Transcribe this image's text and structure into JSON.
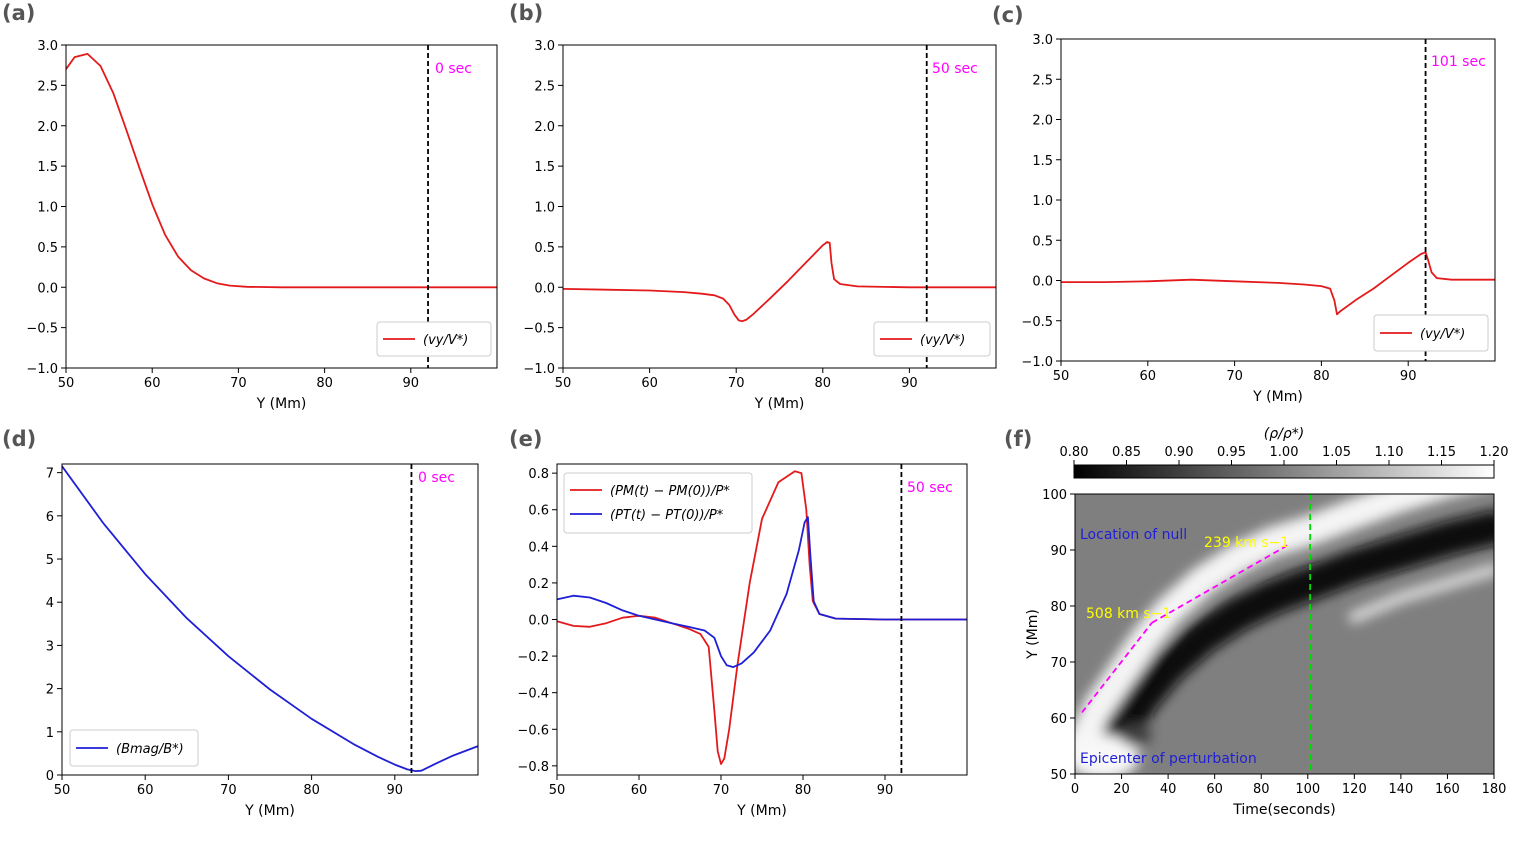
{
  "chart_data": [
    {
      "id": "a",
      "type": "line",
      "panel_label": "(a)",
      "xlabel": "Y (Mm)",
      "ylabel": "",
      "xlim": [
        50,
        100
      ],
      "ylim": [
        -1.0,
        3.0
      ],
      "xticks": [
        50,
        60,
        70,
        80,
        90
      ],
      "xtick_labels": [
        "50",
        "60",
        "70",
        "80",
        "90"
      ],
      "yticks": [
        -1.0,
        -0.5,
        0.0,
        0.5,
        1.0,
        1.5,
        2.0,
        2.5,
        3.0
      ],
      "ytick_labels": [
        "−1.0",
        "−0.5",
        "0.0",
        "0.5",
        "1.0",
        "1.5",
        "2.0",
        "2.5",
        "3.0"
      ],
      "vline": {
        "x": 92,
        "color": "#000000",
        "style": "dashed"
      },
      "annotation": {
        "text": "0 sec",
        "color": "#ff00ff"
      },
      "legend": {
        "placement": "lower right",
        "entries": [
          {
            "label": "(vy/V*)",
            "color": "#e31a1c"
          }
        ]
      },
      "series": [
        {
          "name": "(vy/V*)",
          "color": "#e31a1c",
          "x": [
            50,
            51,
            52.5,
            54,
            55.5,
            57,
            58.5,
            60,
            61.5,
            63,
            64.5,
            66,
            67.5,
            69,
            71,
            75,
            80,
            90,
            100
          ],
          "y": [
            2.7,
            2.85,
            2.89,
            2.74,
            2.4,
            1.95,
            1.48,
            1.03,
            0.65,
            0.38,
            0.21,
            0.11,
            0.05,
            0.02,
            0.005,
            0.0,
            0.0,
            0.0,
            0.0
          ]
        }
      ]
    },
    {
      "id": "b",
      "type": "line",
      "panel_label": "(b)",
      "xlabel": "Y (Mm)",
      "ylabel": "",
      "xlim": [
        50,
        100
      ],
      "ylim": [
        -1.0,
        3.0
      ],
      "xticks": [
        50,
        60,
        70,
        80,
        90
      ],
      "xtick_labels": [
        "50",
        "60",
        "70",
        "80",
        "90"
      ],
      "yticks": [
        -1.0,
        -0.5,
        0.0,
        0.5,
        1.0,
        1.5,
        2.0,
        2.5,
        3.0
      ],
      "ytick_labels": [
        "−1.0",
        "−0.5",
        "0.0",
        "0.5",
        "1.0",
        "1.5",
        "2.0",
        "2.5",
        "3.0"
      ],
      "vline": {
        "x": 92,
        "color": "#000000",
        "style": "dashed"
      },
      "annotation": {
        "text": "50 sec",
        "color": "#ff00ff"
      },
      "legend": {
        "placement": "lower right",
        "entries": [
          {
            "label": "(vy/V*)",
            "color": "#e31a1c"
          }
        ]
      },
      "series": [
        {
          "name": "(vy/V*)",
          "color": "#e31a1c",
          "x": [
            50,
            55,
            60,
            64,
            66,
            67.5,
            68.5,
            69.2,
            69.8,
            70.3,
            70.7,
            71.2,
            72,
            74,
            76,
            78,
            80,
            80.5,
            80.8,
            81.0,
            81.3,
            82,
            84,
            90,
            100
          ],
          "y": [
            -0.02,
            -0.03,
            -0.04,
            -0.06,
            -0.08,
            -0.1,
            -0.14,
            -0.22,
            -0.34,
            -0.41,
            -0.42,
            -0.4,
            -0.33,
            -0.13,
            0.08,
            0.3,
            0.52,
            0.56,
            0.55,
            0.3,
            0.1,
            0.04,
            0.01,
            0.0,
            0.0
          ]
        }
      ]
    },
    {
      "id": "c",
      "type": "line",
      "panel_label": "(c)",
      "xlabel": "Y (Mm)",
      "ylabel": "",
      "xlim": [
        50,
        100
      ],
      "ylim": [
        -1.0,
        3.0
      ],
      "xticks": [
        50,
        60,
        70,
        80,
        90
      ],
      "xtick_labels": [
        "50",
        "60",
        "70",
        "80",
        "90"
      ],
      "yticks": [
        -1.0,
        -0.5,
        0.0,
        0.5,
        1.0,
        1.5,
        2.0,
        2.5,
        3.0
      ],
      "ytick_labels": [
        "−1.0",
        "−0.5",
        "0.0",
        "0.5",
        "1.0",
        "1.5",
        "2.0",
        "2.5",
        "3.0"
      ],
      "vline": {
        "x": 92,
        "color": "#000000",
        "style": "dashed"
      },
      "annotation": {
        "text": "101 sec",
        "color": "#ff00ff"
      },
      "legend": {
        "placement": "lower right",
        "entries": [
          {
            "label": "(vy/V*)",
            "color": "#e31a1c"
          }
        ]
      },
      "series": [
        {
          "name": "(vy/V*)",
          "color": "#e31a1c",
          "x": [
            50,
            55,
            60,
            65,
            70,
            75,
            78,
            80,
            81,
            81.5,
            81.8,
            82.2,
            84,
            86,
            88,
            90,
            91.5,
            92,
            92.3,
            92.7,
            93.3,
            95,
            100
          ],
          "y": [
            -0.02,
            -0.02,
            -0.01,
            0.01,
            -0.01,
            -0.03,
            -0.05,
            -0.07,
            -0.1,
            -0.25,
            -0.42,
            -0.38,
            -0.24,
            -0.1,
            0.06,
            0.22,
            0.33,
            0.35,
            0.25,
            0.1,
            0.03,
            0.01,
            0.01
          ]
        }
      ]
    },
    {
      "id": "d",
      "type": "line",
      "panel_label": "(d)",
      "xlabel": "Y (Mm)",
      "ylabel": "",
      "xlim": [
        50,
        100
      ],
      "ylim": [
        0,
        7.2
      ],
      "xticks": [
        50,
        60,
        70,
        80,
        90
      ],
      "xtick_labels": [
        "50",
        "60",
        "70",
        "80",
        "90"
      ],
      "yticks": [
        0,
        1,
        2,
        3,
        4,
        5,
        6,
        7
      ],
      "ytick_labels": [
        "0",
        "1",
        "2",
        "3",
        "4",
        "5",
        "6",
        "7"
      ],
      "vline": {
        "x": 92,
        "color": "#000000",
        "style": "dashed"
      },
      "annotation": {
        "text": "0 sec",
        "color": "#ff00ff"
      },
      "legend": {
        "placement": "lower left",
        "entries": [
          {
            "label": "(Bmag/B*)",
            "color": "#1f1fd6"
          }
        ]
      },
      "series": [
        {
          "name": "(Bmag/B*)",
          "color": "#1f1fd6",
          "x": [
            50,
            55,
            60,
            65,
            70,
            75,
            80,
            85,
            88,
            90,
            91.5,
            92.5,
            93.2,
            95,
            97,
            100
          ],
          "y": [
            7.15,
            5.82,
            4.65,
            3.63,
            2.75,
            1.98,
            1.3,
            0.72,
            0.42,
            0.24,
            0.13,
            0.09,
            0.1,
            0.27,
            0.45,
            0.67
          ]
        }
      ]
    },
    {
      "id": "e",
      "type": "line",
      "panel_label": "(e)",
      "xlabel": "Y (Mm)",
      "ylabel": "",
      "xlim": [
        50,
        100
      ],
      "ylim": [
        -0.85,
        0.85
      ],
      "xticks": [
        50,
        60,
        70,
        80,
        90
      ],
      "xtick_labels": [
        "50",
        "60",
        "70",
        "80",
        "90"
      ],
      "yticks": [
        -0.8,
        -0.6,
        -0.4,
        -0.2,
        0.0,
        0.2,
        0.4,
        0.6,
        0.8
      ],
      "ytick_labels": [
        "−0.8",
        "−0.6",
        "−0.4",
        "−0.2",
        "0.0",
        "0.2",
        "0.4",
        "0.6",
        "0.8"
      ],
      "vline": {
        "x": 92,
        "color": "#000000",
        "style": "dashed"
      },
      "annotation": {
        "text": "50 sec",
        "color": "#ff00ff"
      },
      "legend": {
        "placement": "upper left",
        "entries": [
          {
            "label": "(PM(t) − PM(0))/P*",
            "color": "#e31a1c"
          },
          {
            "label": "(PT(t) − PT(0))/P*",
            "color": "#1f1fd6"
          }
        ]
      },
      "series": [
        {
          "name": "(PM(t) − PM(0))/P*",
          "color": "#e31a1c",
          "x": [
            50,
            52,
            54,
            56,
            58,
            60,
            62,
            64,
            66,
            67.5,
            68.5,
            69.2,
            69.6,
            70,
            70.4,
            71,
            72,
            73.5,
            75,
            77,
            79,
            79.8,
            80.4,
            80.8,
            81.2,
            82,
            84,
            90,
            100
          ],
          "y": [
            -0.01,
            -0.035,
            -0.04,
            -0.02,
            0.01,
            0.02,
            0.01,
            -0.02,
            -0.05,
            -0.08,
            -0.15,
            -0.5,
            -0.72,
            -0.79,
            -0.76,
            -0.6,
            -0.25,
            0.2,
            0.55,
            0.75,
            0.81,
            0.8,
            0.6,
            0.3,
            0.1,
            0.03,
            0.005,
            0.0,
            0.0
          ]
        },
        {
          "name": "(PT(t) − PT(0))/P*",
          "color": "#1f1fd6",
          "x": [
            50,
            52,
            54,
            56,
            58,
            60,
            62,
            64,
            66,
            68,
            69.2,
            70,
            70.7,
            71.5,
            72.5,
            74,
            76,
            78,
            79.5,
            80.2,
            80.6,
            80.9,
            81.3,
            82,
            84,
            90,
            100
          ],
          "y": [
            0.11,
            0.13,
            0.12,
            0.09,
            0.05,
            0.02,
            0.0,
            -0.02,
            -0.04,
            -0.06,
            -0.1,
            -0.2,
            -0.25,
            -0.26,
            -0.24,
            -0.18,
            -0.06,
            0.14,
            0.38,
            0.53,
            0.56,
            0.35,
            0.1,
            0.03,
            0.005,
            0.0,
            0.0
          ]
        }
      ]
    },
    {
      "id": "f",
      "type": "heatmap",
      "panel_label": "(f)",
      "xlabel": "Time(seconds)",
      "ylabel": "Y (Mm)",
      "xlim": [
        0,
        180
      ],
      "ylim": [
        50,
        100
      ],
      "xticks": [
        0,
        20,
        40,
        60,
        80,
        100,
        120,
        140,
        160,
        180
      ],
      "xtick_labels": [
        "0",
        "20",
        "40",
        "60",
        "80",
        "100",
        "120",
        "140",
        "160",
        "180"
      ],
      "yticks": [
        50,
        60,
        70,
        80,
        90,
        100
      ],
      "ytick_labels": [
        "50",
        "60",
        "70",
        "80",
        "90",
        "100"
      ],
      "colorbar": {
        "label": "(ρ/ρ*)",
        "range": [
          0.8,
          1.2
        ],
        "colormap": "gray",
        "ticks": [
          0.8,
          0.85,
          0.9,
          0.95,
          1.0,
          1.05,
          1.1,
          1.15,
          1.2
        ],
        "tick_labels": [
          "0.80",
          "0.85",
          "0.90",
          "0.95",
          "1.00",
          "1.05",
          "1.10",
          "1.15",
          "1.20"
        ]
      },
      "vline": {
        "x": 101,
        "color": "#00dd00",
        "style": "dashed"
      },
      "fit_lines": [
        {
          "label": "508 km s−1",
          "color": "#ff00ff",
          "x": [
            3,
            33
          ],
          "y": [
            61,
            77
          ]
        },
        {
          "label": "239 km s−1",
          "color": "#ff00ff",
          "x": [
            33,
            92
          ],
          "y": [
            77,
            91
          ]
        }
      ],
      "annotations": [
        {
          "text": "Location of null",
          "color": "#1f1fd6"
        },
        {
          "text": "Epicenter of perturbation",
          "color": "#1f1fd6"
        }
      ]
    }
  ]
}
